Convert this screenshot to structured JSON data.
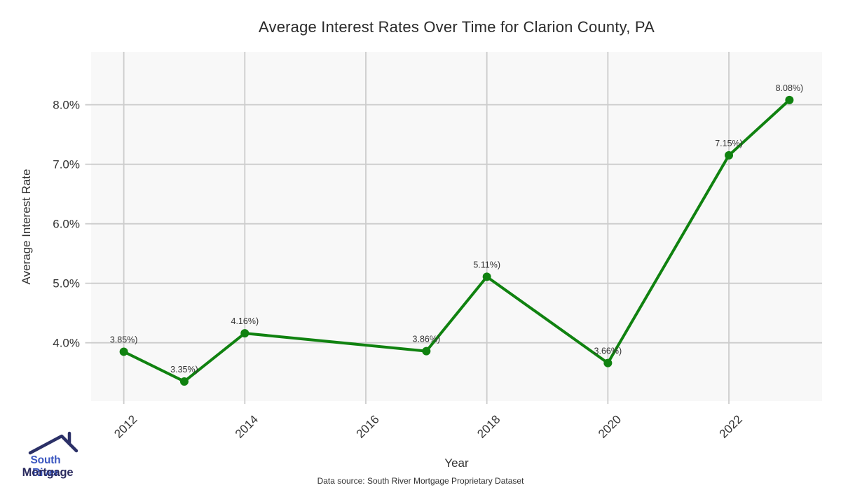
{
  "chart_data": {
    "type": "line",
    "title": "Average Interest Rates Over Time for Clarion County, PA",
    "xlabel": "Year",
    "ylabel": "Average Interest Rate",
    "x": [
      2012,
      2013,
      2014,
      2017,
      2018,
      2020,
      2022,
      2023
    ],
    "series": [
      {
        "name": "Average Interest Rate",
        "values": [
          3.85,
          3.35,
          4.16,
          3.86,
          5.11,
          3.66,
          7.15,
          8.08
        ]
      }
    ],
    "point_labels": [
      "3.85%)",
      "3.35%)",
      "4.16%)",
      "3.86%)",
      "5.11%)",
      "3.66%)",
      "7.15%)",
      "8.08%)"
    ],
    "x_ticks": [
      {
        "value": 2012,
        "label": "2012"
      },
      {
        "value": 2014,
        "label": "2014"
      },
      {
        "value": 2016,
        "label": "2016"
      },
      {
        "value": 2018,
        "label": "2018"
      },
      {
        "value": 2020,
        "label": "2020"
      },
      {
        "value": 2022,
        "label": "2022"
      }
    ],
    "y_ticks": [
      {
        "value": 4,
        "label": "4.0%"
      },
      {
        "value": 5,
        "label": "5.0%"
      },
      {
        "value": 6,
        "label": "6.0%"
      },
      {
        "value": 7,
        "label": "7.0%"
      },
      {
        "value": 8,
        "label": "8.0%"
      }
    ],
    "xlim": [
      2011.46,
      2023.54
    ],
    "ylim": [
      3.02,
      8.89
    ],
    "grid": true,
    "legend": "none",
    "colors": {
      "line": "#108210",
      "marker": "#108210",
      "grid": "#cccccc",
      "panel_bg": "#f8f8f8",
      "tick_text": "#333333",
      "point_label_text": "#333333"
    }
  },
  "branding": {
    "line1": "South River",
    "line2": "Mortgage",
    "colors": {
      "line1": "#3b57c0",
      "line2": "#2a2a5e",
      "roof": "#2b3067"
    }
  },
  "footer": {
    "text": "Data source: South River Mortgage Proprietary Dataset"
  }
}
